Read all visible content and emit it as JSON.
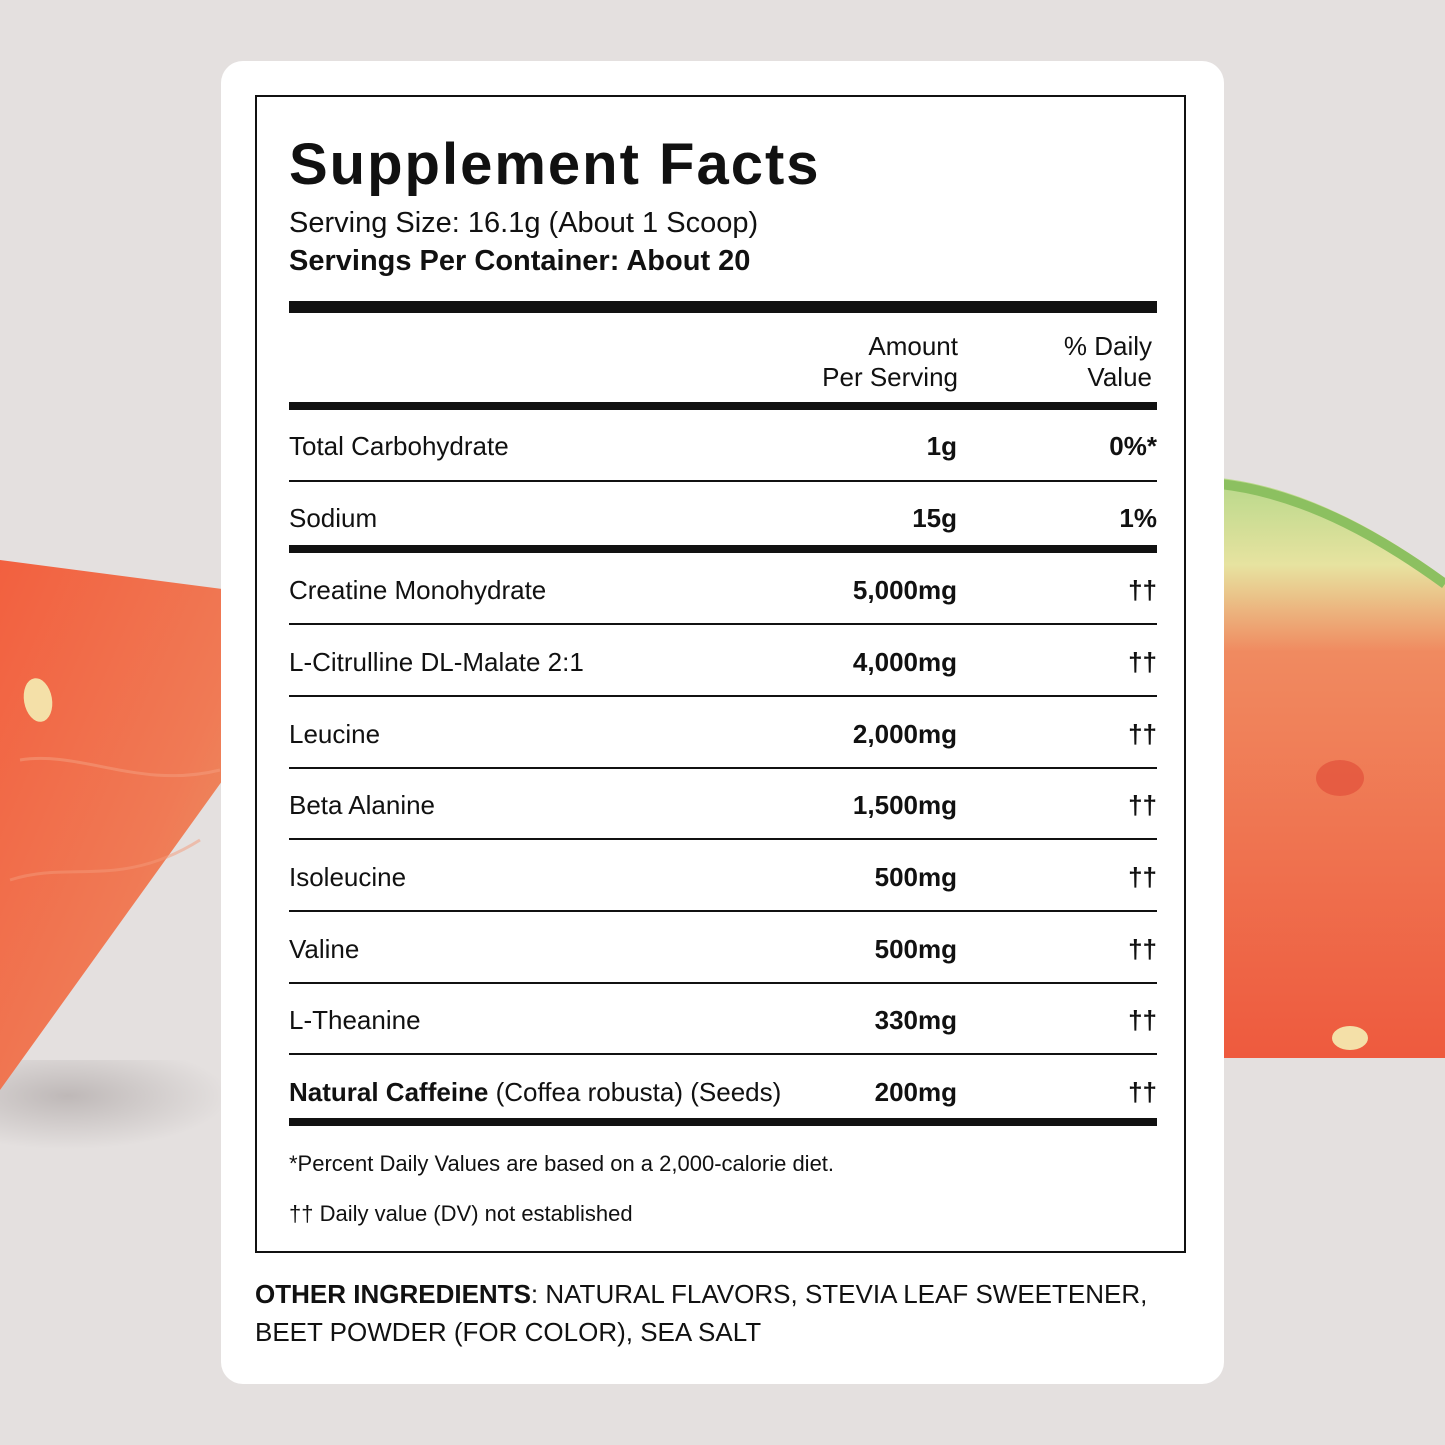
{
  "title": "Supplement Facts",
  "serving_size": "Serving Size: 16.1g (About 1 Scoop)",
  "servings_per_container": "Servings Per Container: About 20",
  "header": {
    "amount_line1": "Amount",
    "amount_line2": "Per Serving",
    "dv_line1": "% Daily",
    "dv_line2": "Value"
  },
  "rows": [
    {
      "name": "Total Carbohydrate",
      "note": "",
      "amount": "1g",
      "dv": "0%*"
    },
    {
      "name": "Sodium",
      "note": "",
      "amount": "15g",
      "dv": "1%"
    },
    {
      "name": "Creatine Monohydrate",
      "note": "",
      "amount": "5,000mg",
      "dv": "††"
    },
    {
      "name": "L-Citrulline DL-Malate 2:1",
      "note": "",
      "amount": "4,000mg",
      "dv": "††"
    },
    {
      "name": "Leucine",
      "note": "",
      "amount": "2,000mg",
      "dv": "††"
    },
    {
      "name": "Beta Alanine",
      "note": "",
      "amount": "1,500mg",
      "dv": "††"
    },
    {
      "name": "Isoleucine",
      "note": "",
      "amount": "500mg",
      "dv": "††"
    },
    {
      "name": "Valine",
      "note": "",
      "amount": "500mg",
      "dv": "††"
    },
    {
      "name": "L-Theanine",
      "note": "",
      "amount": "330mg",
      "dv": "††"
    },
    {
      "name": "Natural Caffeine",
      "note": " (Coffea robusta) (Seeds)",
      "amount": "200mg",
      "dv": "††"
    }
  ],
  "footnote_dv": "*Percent Daily Values are based on a 2,000-calorie diet.",
  "footnote_dagger": "†† Daily value (DV) not established",
  "other_ingredients": {
    "label": "OTHER INGREDIENTS",
    "text": ": NATURAL FLAVORS, STEVIA LEAF SWEETENER, BEET POWDER (FOR COLOR), SEA SALT"
  },
  "colors": {
    "background": "#e4e0df",
    "card": "#ffffff",
    "ink": "#111111",
    "melon_flesh": "#ee5a3e",
    "melon_rind": "#b9d98a"
  }
}
